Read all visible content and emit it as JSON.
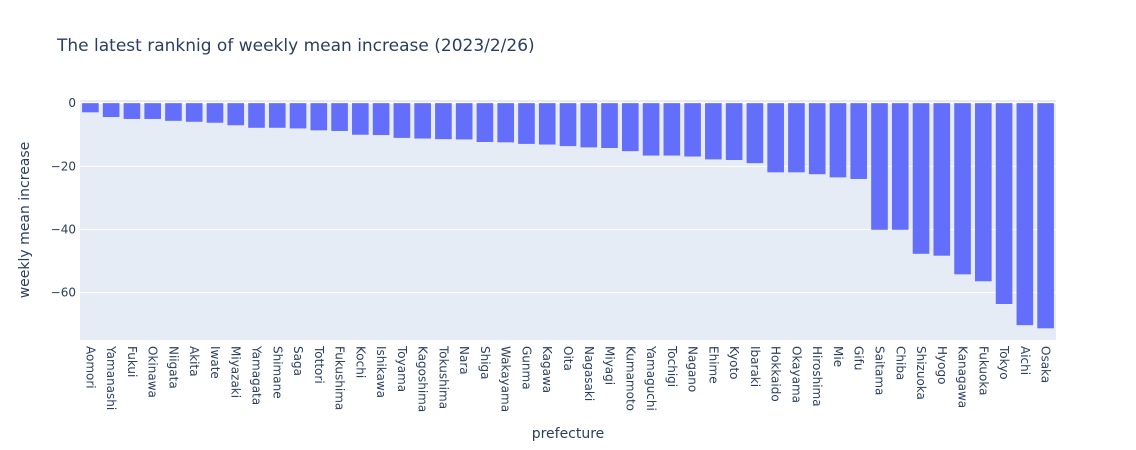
{
  "chart_data": {
    "type": "bar",
    "title": "The latest ranknig of weekly mean increase (2023/2/26)",
    "xlabel": "prefecture",
    "ylabel": "weekly mean increase",
    "ylim": [
      -75,
      1
    ],
    "yticks": [
      0,
      -20,
      -40,
      -60
    ],
    "ytick_labels": [
      "0",
      "−20",
      "−40",
      "−60"
    ],
    "grid": true,
    "bar_color": "#636efa",
    "plot_bg": "#e5ecf6",
    "categories": [
      "Aomori",
      "Yamanashi",
      "Fukui",
      "Okinawa",
      "Niigata",
      "Akita",
      "Iwate",
      "Miyazaki",
      "Yamagata",
      "Shimane",
      "Saga",
      "Tottori",
      "Fukushima",
      "Kochi",
      "Ishikawa",
      "Toyama",
      "Kagoshima",
      "Tokushima",
      "Nara",
      "Shiga",
      "Wakayama",
      "Gunma",
      "Kagawa",
      "Oita",
      "Nagasaki",
      "Miyagi",
      "Kumamoto",
      "Yamaguchi",
      "Tochigi",
      "Nagano",
      "Ehime",
      "Kyoto",
      "Ibaraki",
      "Hokkaido",
      "Okayama",
      "Hiroshima",
      "Mie",
      "Gifu",
      "Saitama",
      "Chiba",
      "Shizuoka",
      "Hyogo",
      "Kanagawa",
      "Fukuoka",
      "Tokyo",
      "Aichi",
      "Osaka"
    ],
    "values": [
      -2.9,
      -4.4,
      -5.0,
      -5.0,
      -5.6,
      -5.9,
      -6.2,
      -7.0,
      -7.8,
      -7.8,
      -8.0,
      -8.6,
      -8.8,
      -10.0,
      -10.1,
      -11.0,
      -11.2,
      -11.4,
      -11.5,
      -12.3,
      -12.4,
      -12.9,
      -13.1,
      -13.6,
      -14.0,
      -14.2,
      -15.2,
      -16.6,
      -16.6,
      -16.9,
      -17.8,
      -18.0,
      -19.0,
      -21.9,
      -21.9,
      -22.5,
      -23.5,
      -24.0,
      -40.1,
      -40.1,
      -47.7,
      -48.3,
      -54.2,
      -56.4,
      -63.6,
      -70.3,
      -71.3
    ]
  }
}
